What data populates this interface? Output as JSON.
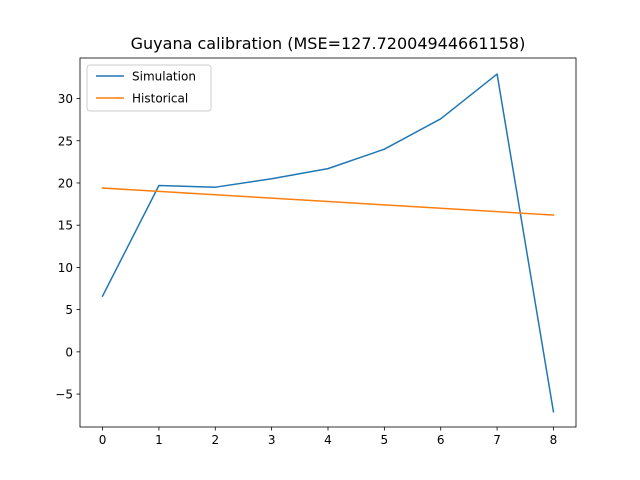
{
  "chart_data": {
    "type": "line",
    "title": "Guyana calibration (MSE=127.72004944661158)",
    "xlabel": "",
    "ylabel": "",
    "xlim": [
      -0.4,
      8.4
    ],
    "ylim": [
      -8.9,
      34.8
    ],
    "x_ticks": [
      0,
      1,
      2,
      3,
      4,
      5,
      6,
      7,
      8
    ],
    "y_ticks": [
      -5,
      0,
      5,
      10,
      15,
      20,
      25,
      30
    ],
    "y_tick_labels": [
      "−5",
      "0",
      "5",
      "10",
      "15",
      "20",
      "25",
      "30"
    ],
    "grid": false,
    "legend_position": "upper-left",
    "series": [
      {
        "name": "Simulation",
        "color": "#1f77b4",
        "x": [
          0,
          1,
          2,
          3,
          4,
          5,
          6,
          7,
          8
        ],
        "y": [
          6.6,
          19.7,
          19.5,
          20.5,
          21.7,
          24.0,
          27.6,
          32.9,
          -7.1
        ]
      },
      {
        "name": "Historical",
        "color": "#ff7f0e",
        "x": [
          0,
          1,
          2,
          3,
          4,
          5,
          6,
          7,
          8
        ],
        "y": [
          19.4,
          19.0,
          18.6,
          18.2,
          17.8,
          17.4,
          17.0,
          16.6,
          16.2
        ]
      }
    ]
  }
}
